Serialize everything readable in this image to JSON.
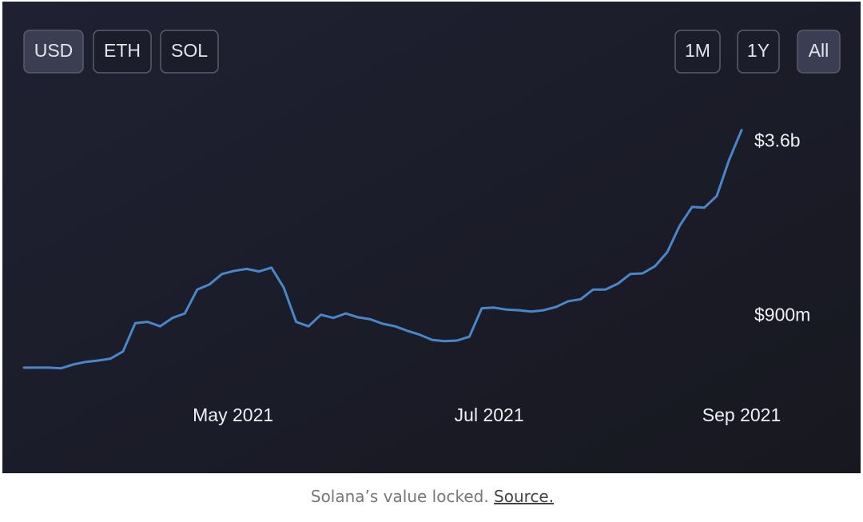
{
  "controls": {
    "currency": [
      "USD",
      "ETH",
      "SOL"
    ],
    "currency_selected": 0,
    "range": [
      "1M",
      "1Y",
      "All"
    ],
    "range_selected": 2
  },
  "caption": {
    "text": "Solana’s value locked.",
    "link": "Source."
  },
  "chart_data": {
    "type": "line",
    "color": "#4a86c8",
    "values": [
      100000000,
      100000000,
      100000000,
      90000000,
      150000000,
      190000000,
      210000000,
      240000000,
      350000000,
      790000000,
      810000000,
      740000000,
      870000000,
      940000000,
      1310000000,
      1390000000,
      1550000000,
      1600000000,
      1630000000,
      1590000000,
      1650000000,
      1340000000,
      810000000,
      740000000,
      920000000,
      870000000,
      940000000,
      880000000,
      850000000,
      780000000,
      740000000,
      670000000,
      610000000,
      530000000,
      510000000,
      520000000,
      580000000,
      1020000000,
      1030000000,
      1000000000,
      990000000,
      970000000,
      990000000,
      1040000000,
      1130000000,
      1160000000,
      1310000000,
      1310000000,
      1400000000,
      1550000000,
      1560000000,
      1670000000,
      1890000000,
      2300000000,
      2590000000,
      2580000000,
      2760000000,
      3320000000,
      3780000000
    ],
    "xlim": [
      0,
      58
    ],
    "xticks": [
      {
        "value": 16.9,
        "label": "May 2021"
      },
      {
        "value": 37.6,
        "label": "Jul 2021"
      },
      {
        "value": 58,
        "label": "Sep 2021"
      }
    ],
    "ylim": [
      0,
      4000000000
    ],
    "yticks": [
      {
        "value": 900000000,
        "label": "$900m"
      },
      {
        "value": 3600000000,
        "label": "$3.6b"
      }
    ]
  }
}
